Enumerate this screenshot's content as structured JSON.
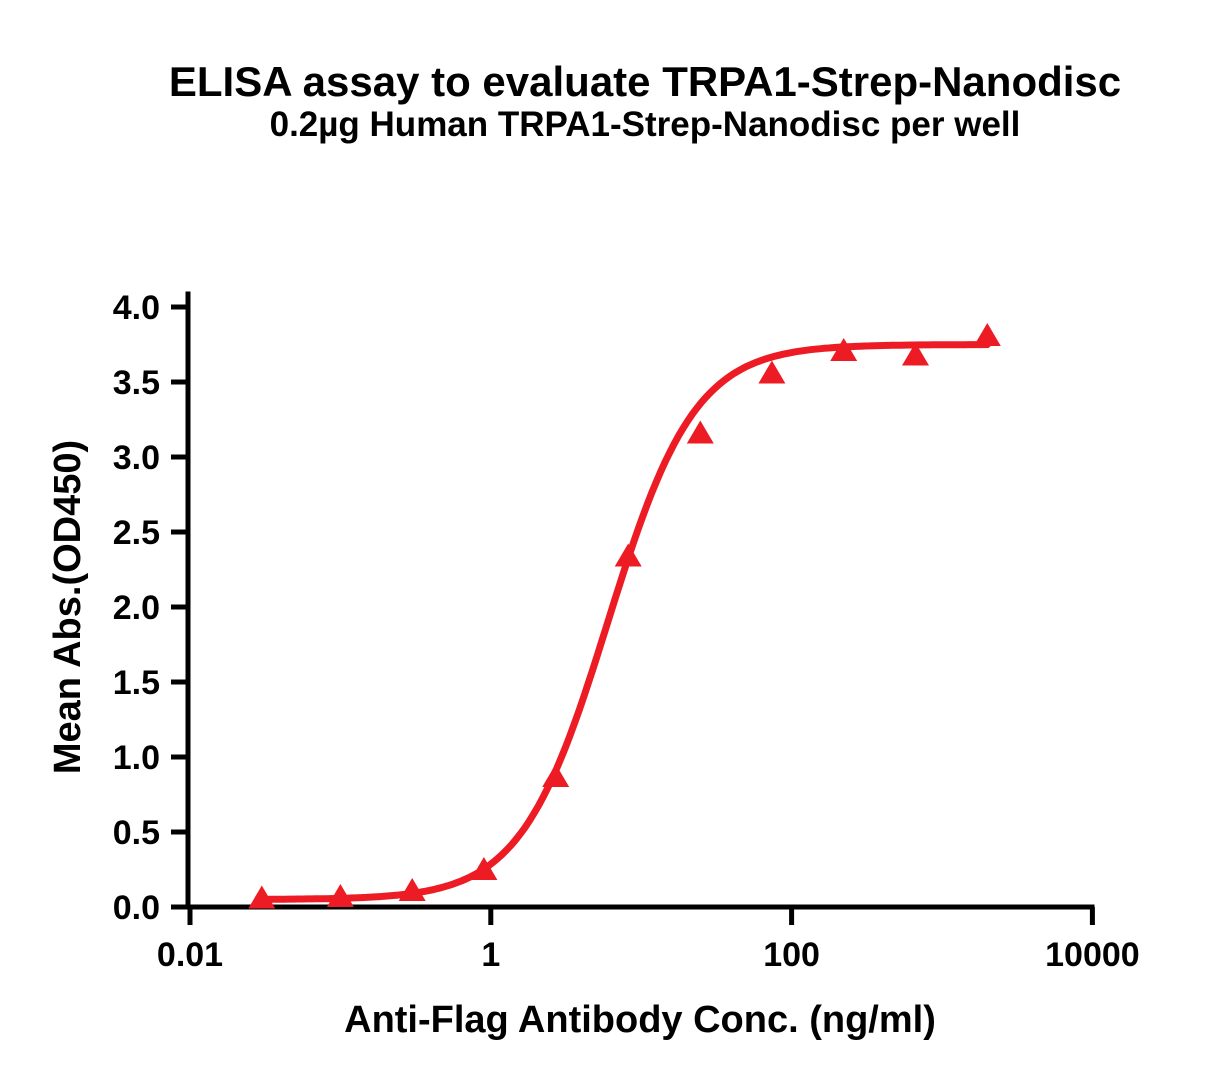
{
  "chart_data": {
    "type": "scatter",
    "title": "ELISA assay to evaluate TRPA1-Strep-Nanodisc",
    "subtitle": "0.2µg Human TRPA1-Strep-Nanodisc per well",
    "xlabel": "Anti-Flag Antibody Conc. (ng/ml)",
    "ylabel": "Mean Abs.(OD450)",
    "x_scale": "log10",
    "xlim": [
      0.01,
      10000
    ],
    "ylim": [
      0.0,
      4.0
    ],
    "grid": false,
    "legend_position": "none",
    "x_ticks": {
      "values": [
        0.01,
        1,
        100,
        10000
      ],
      "labels": [
        "0.01",
        "1",
        "100",
        "10000"
      ]
    },
    "y_ticks": {
      "values": [
        0,
        0.5,
        1.0,
        1.5,
        2.0,
        2.5,
        3.0,
        3.5,
        4.0
      ],
      "labels": [
        "0.0",
        "0.5",
        "1.0",
        "1.5",
        "2.0",
        "2.5",
        "3.0",
        "3.5",
        "4.0"
      ]
    },
    "series": [
      {
        "marker": "triangle-up",
        "color": "#ED1C24",
        "x": [
          0.03,
          0.1,
          0.3,
          0.9,
          2.7,
          8.2,
          24.7,
          74,
          222,
          667,
          2000
        ],
        "y": [
          0.06,
          0.07,
          0.11,
          0.25,
          0.87,
          2.34,
          3.16,
          3.56,
          3.71,
          3.68,
          3.81
        ]
      }
    ],
    "fit_curve": {
      "model": "4PL",
      "bottom": 0.05,
      "top": 3.75,
      "ec50": 6.0,
      "hill": 1.5,
      "x_range": [
        0.03,
        2000
      ],
      "color": "#ED1C24"
    }
  },
  "colors": {
    "accent": "#ED1C24",
    "axis": "#000000",
    "background": "#FFFFFF"
  }
}
